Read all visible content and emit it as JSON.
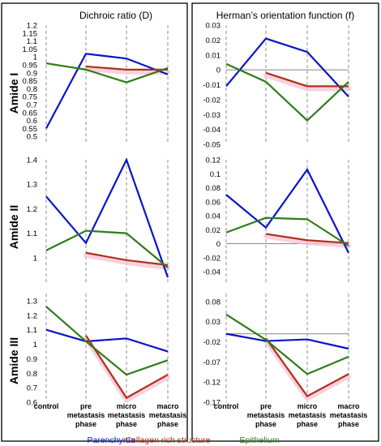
{
  "panel_titles": {
    "left": "Dichroic ratio (D)",
    "right": "Herman’s orientation function (f)"
  },
  "row_labels": [
    "Amide I",
    "Amide II",
    "Amide III"
  ],
  "x_labels": [
    [
      "control"
    ],
    [
      "pre",
      "metastasis",
      "phase"
    ],
    [
      "micro",
      "metastasis",
      "phase"
    ],
    [
      "macro",
      "metastasis",
      "phase"
    ]
  ],
  "legend": [
    {
      "label": "Parenchyma",
      "color": "#0a14c8"
    },
    {
      "label": "Collagen rich structure",
      "color": "#b0301a"
    },
    {
      "label": "Epithelium",
      "color": "#2e7d1a"
    }
  ],
  "colors": {
    "parenchyma": "#0a14c8",
    "collagen": "#b0301a",
    "epithelium": "#2e7d1a",
    "band": "#f7c5d8",
    "baseline": "#888888",
    "dashed": "#777777",
    "frame": "#000000"
  },
  "chart_data": [
    {
      "type": "line",
      "panel": "Dichroic ratio (D)",
      "row": "Amide I",
      "categories": [
        "control",
        "pre metastasis phase",
        "micro metastasis phase",
        "macro metastasis phase"
      ],
      "ylim": [
        0.45,
        1.2
      ],
      "yticks": [
        0.5,
        0.55,
        0.6,
        0.65,
        0.7,
        0.75,
        0.8,
        0.85,
        0.9,
        0.95,
        1,
        1.05,
        1.1,
        1.15,
        1.2
      ],
      "yticklabels": [
        "0.5",
        "0.55",
        "0.6",
        "0.65",
        "0.7",
        "0.75",
        "0.8",
        "0.85",
        "0.9",
        "0.95",
        "1",
        "1.05",
        "1.1",
        "1.15",
        "1.2"
      ],
      "series": [
        {
          "name": "Parenchyma",
          "values": [
            0.55,
            1.02,
            0.99,
            0.89
          ]
        },
        {
          "name": "Collagen rich structure",
          "values": [
            null,
            0.94,
            0.92,
            0.92
          ]
        },
        {
          "name": "Epithelium",
          "values": [
            0.96,
            0.92,
            0.84,
            0.93
          ]
        }
      ]
    },
    {
      "type": "line",
      "panel": "Herman’s orientation function (f)",
      "row": "Amide I",
      "categories": [
        "control",
        "pre metastasis phase",
        "micro metastasis phase",
        "macro metastasis phase"
      ],
      "ylim": [
        -0.05,
        0.03
      ],
      "yticks": [
        -0.05,
        -0.04,
        -0.03,
        -0.02,
        -0.01,
        0,
        0.01,
        0.02,
        0.03
      ],
      "yticklabels": [
        "-0.05",
        "-0.04",
        "-0.03",
        "-0.02",
        "-0.01",
        "0",
        "0.01",
        "0.02",
        "0.03"
      ],
      "baseline": 0,
      "series": [
        {
          "name": "Parenchyma",
          "values": [
            -0.011,
            0.021,
            0.012,
            -0.018
          ]
        },
        {
          "name": "Collagen rich structure",
          "values": [
            null,
            -0.002,
            -0.011,
            -0.011
          ]
        },
        {
          "name": "Epithelium",
          "values": [
            0.004,
            -0.008,
            -0.034,
            -0.008
          ]
        }
      ]
    },
    {
      "type": "line",
      "panel": "Dichroic ratio (D)",
      "row": "Amide II",
      "categories": [
        "control",
        "pre metastasis phase",
        "micro metastasis phase",
        "macro metastasis phase"
      ],
      "ylim": [
        0.9,
        1.4
      ],
      "yticks": [
        1,
        1.1,
        1.2,
        1.3,
        1.4
      ],
      "yticklabels": [
        "1",
        "1.1",
        "1.2",
        "1.3",
        "1.4"
      ],
      "series": [
        {
          "name": "Parenchyma",
          "values": [
            1.25,
            1.06,
            1.4,
            0.92
          ]
        },
        {
          "name": "Collagen rich structure",
          "values": [
            null,
            1.02,
            0.99,
            0.97
          ]
        },
        {
          "name": "Epithelium",
          "values": [
            1.03,
            1.11,
            1.1,
            0.96
          ]
        }
      ]
    },
    {
      "type": "line",
      "panel": "Herman’s orientation function (f)",
      "row": "Amide II",
      "categories": [
        "control",
        "pre metastasis phase",
        "micro metastasis phase",
        "macro metastasis phase"
      ],
      "ylim": [
        -0.055,
        0.12
      ],
      "yticks": [
        -0.04,
        -0.02,
        0,
        0.02,
        0.04,
        0.06,
        0.08,
        0.1,
        0.12
      ],
      "yticklabels": [
        "-0.04",
        "-0.02",
        "0",
        "0.02",
        "0.04",
        "0.06",
        "0.08",
        "0.1",
        "0.12"
      ],
      "baseline": 0,
      "series": [
        {
          "name": "Parenchyma",
          "values": [
            0.07,
            0.023,
            0.106,
            -0.013
          ]
        },
        {
          "name": "Collagen rich structure",
          "values": [
            null,
            0.014,
            0.005,
            0.001
          ]
        },
        {
          "name": "Epithelium",
          "values": [
            0.016,
            0.037,
            0.035,
            -0.003
          ]
        }
      ]
    },
    {
      "type": "line",
      "panel": "Dichroic ratio (D)",
      "row": "Amide III",
      "categories": [
        "control",
        "pre metastasis phase",
        "micro metastasis phase",
        "macro metastasis phase"
      ],
      "ylim": [
        0.6,
        1.35
      ],
      "yticks": [
        0.6,
        0.7,
        0.8,
        0.9,
        1,
        1.1,
        1.2,
        1.3
      ],
      "yticklabels": [
        "0.6",
        "0.7",
        "0.8",
        "0.9",
        "1",
        "1.1",
        "1.2",
        "1.3"
      ],
      "series": [
        {
          "name": "Parenchyma",
          "values": [
            1.1,
            1.02,
            1.04,
            0.95
          ]
        },
        {
          "name": "Collagen rich structure",
          "values": [
            null,
            1.06,
            0.63,
            0.79
          ]
        },
        {
          "name": "Epithelium",
          "values": [
            1.26,
            1.02,
            0.79,
            0.89
          ]
        }
      ]
    },
    {
      "type": "line",
      "panel": "Herman’s orientation function (f)",
      "row": "Amide III",
      "categories": [
        "control",
        "pre metastasis phase",
        "micro metastasis phase",
        "macro metastasis phase"
      ],
      "ylim": [
        -0.17,
        0.1
      ],
      "yticks": [
        -0.17,
        -0.12,
        -0.07,
        -0.02,
        0.03,
        0.08
      ],
      "yticklabels": [
        "-0.17",
        "-0.12",
        "-0.07",
        "-0.02",
        "0.03",
        "0.08"
      ],
      "baseline": 0,
      "series": [
        {
          "name": "Parenchyma",
          "values": [
            0.0,
            -0.018,
            -0.014,
            -0.037
          ]
        },
        {
          "name": "Collagen rich structure",
          "values": [
            null,
            -0.011,
            -0.155,
            -0.1
          ]
        },
        {
          "name": "Epithelium",
          "values": [
            0.048,
            -0.015,
            -0.1,
            -0.057
          ]
        }
      ]
    }
  ]
}
